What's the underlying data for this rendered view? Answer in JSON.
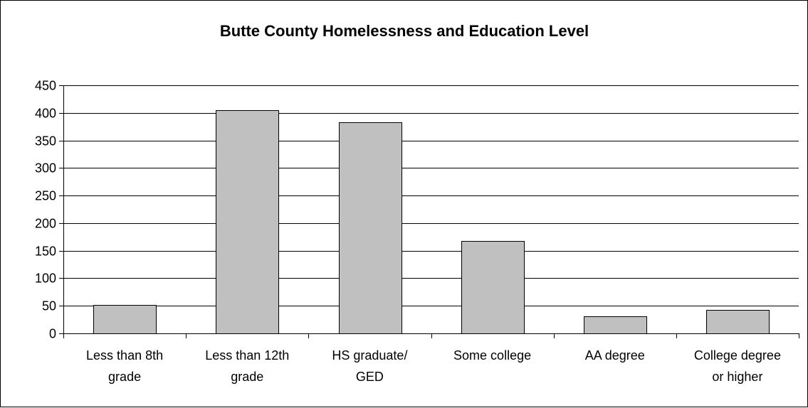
{
  "chart_data": {
    "type": "bar",
    "title": "Butte County Homelessness and Education Level",
    "xlabel": "",
    "ylabel": "",
    "categories": [
      [
        "Less than 8th",
        "grade"
      ],
      [
        "Less than 12th",
        "grade"
      ],
      [
        "HS graduate/",
        "GED"
      ],
      [
        "Some college"
      ],
      [
        "AA degree"
      ],
      [
        "College degree",
        "or higher"
      ]
    ],
    "values": [
      52,
      405,
      383,
      167,
      31,
      43
    ],
    "ylim": [
      0,
      450
    ],
    "yticks": [
      "0",
      "50",
      "100",
      "150",
      "200",
      "250",
      "300",
      "350",
      "400",
      "450"
    ],
    "grid": true,
    "legend": "none",
    "colors": {
      "bar_fill": "#c0c0c0",
      "bar_stroke": "#000000",
      "grid": "#000000",
      "axis": "#000000"
    }
  }
}
